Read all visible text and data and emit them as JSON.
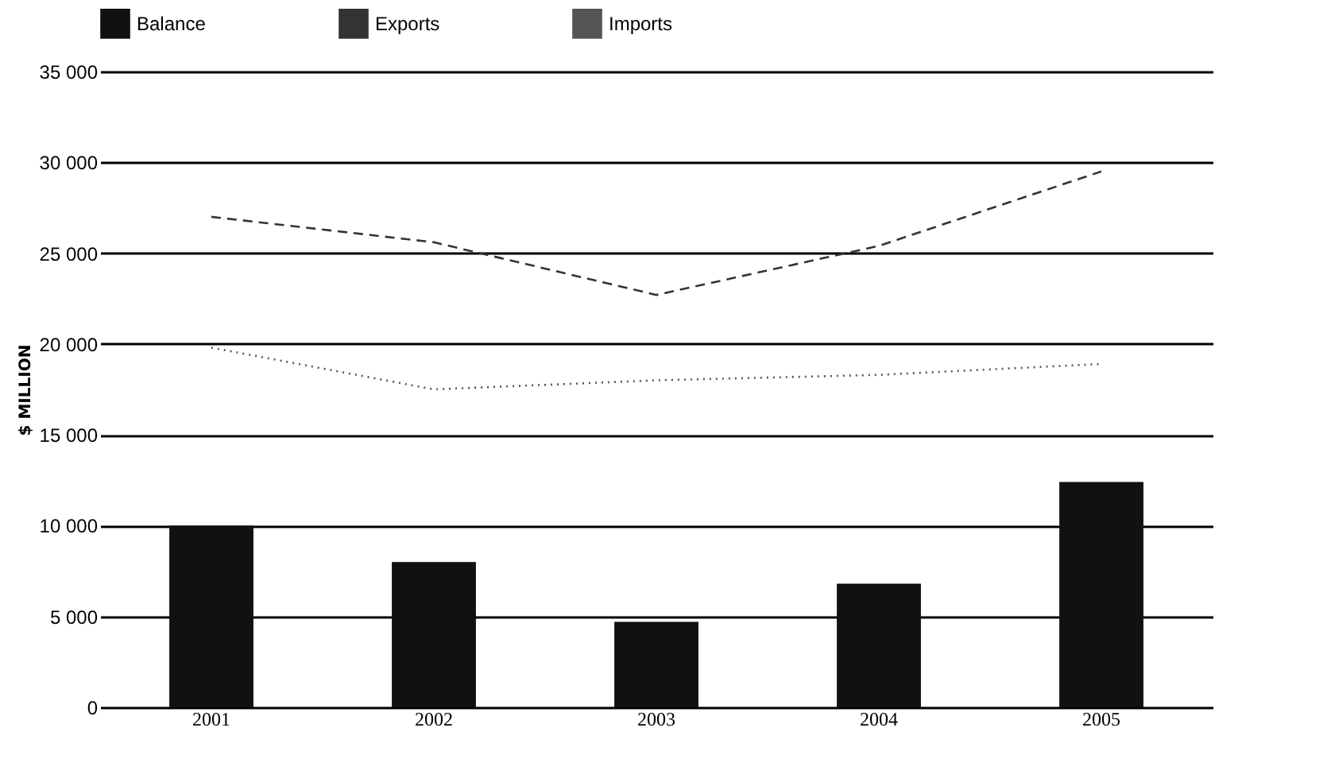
{
  "chart_data": {
    "type": "bar",
    "ylabel": "$ MILLION",
    "categories": [
      "2001",
      "2002",
      "2003",
      "2004",
      "2005"
    ],
    "series": [
      {
        "name": "Balance",
        "color": "#111111",
        "values": [
          10000,
          8000,
          4700,
          6800,
          12400
        ]
      },
      {
        "name": "Exports",
        "type": "line",
        "color": "#333333",
        "line_style": "dashed",
        "values": [
          27000,
          25600,
          22700,
          25400,
          29500
        ]
      },
      {
        "name": "Imports",
        "type": "line",
        "color": "#555555",
        "line_style": "dotted",
        "values": [
          19800,
          17500,
          18000,
          18300,
          18900
        ]
      }
    ],
    "ylim": [
      0,
      35000
    ],
    "yticks": [
      {
        "value": 0,
        "label": "0"
      },
      {
        "value": 5000,
        "label": "5 000"
      },
      {
        "value": 10000,
        "label": "10 000"
      },
      {
        "value": 15000,
        "label": "15 000"
      },
      {
        "value": 20000,
        "label": "20 000"
      },
      {
        "value": 25000,
        "label": "25 000"
      },
      {
        "value": 30000,
        "label": "30 000"
      },
      {
        "value": 35000,
        "label": "35 000"
      }
    ],
    "grid": "y",
    "legend": "top",
    "marker": "none"
  }
}
